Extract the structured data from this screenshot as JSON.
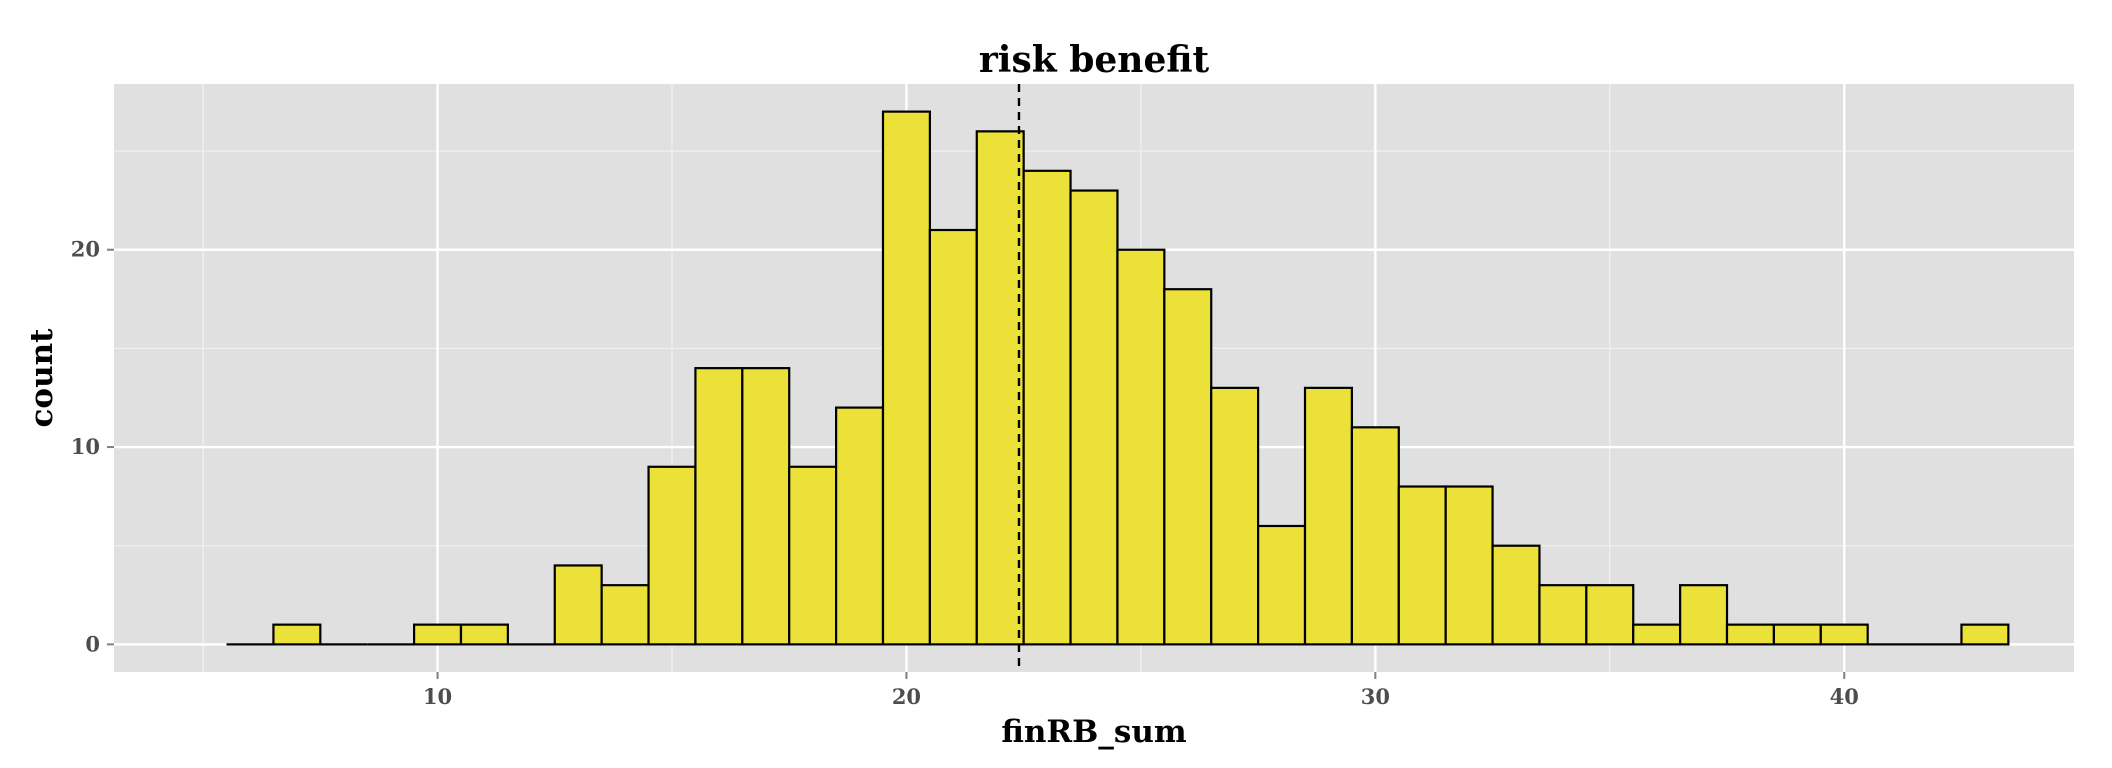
{
  "chart_data": {
    "type": "bar",
    "title": "risk benefit",
    "xlabel": "finRB_sum",
    "ylabel": "count",
    "xlim": [
      3.1,
      44.9
    ],
    "ylim": [
      -1.4,
      28.4
    ],
    "bin_width": 1,
    "bins_x": [
      6,
      7,
      8,
      9,
      10,
      11,
      12,
      13,
      14,
      15,
      16,
      17,
      18,
      19,
      20,
      21,
      22,
      23,
      24,
      25,
      26,
      27,
      28,
      29,
      30,
      31,
      32,
      33,
      34,
      35,
      36,
      37,
      38,
      39,
      40,
      41,
      42,
      43
    ],
    "values": [
      0,
      1,
      0,
      0,
      1,
      1,
      0,
      4,
      3,
      9,
      14,
      14,
      9,
      12,
      27,
      21,
      26,
      24,
      23,
      20,
      18,
      13,
      6,
      13,
      11,
      8,
      8,
      5,
      3,
      3,
      1,
      3,
      1,
      1,
      1,
      0,
      0,
      1
    ],
    "x_ticks": [
      10,
      20,
      30,
      40
    ],
    "y_ticks": [
      0,
      10,
      20
    ],
    "vline": 22.4,
    "vline_style": "dashed",
    "grid": true,
    "colors": {
      "bar_fill": "#ebe138",
      "bar_stroke": "#000000",
      "panel": "#e0e0e0",
      "grid_major": "#ffffff",
      "grid_minor": "#f1f1f1",
      "tick_text": "#4d4d4d"
    }
  }
}
